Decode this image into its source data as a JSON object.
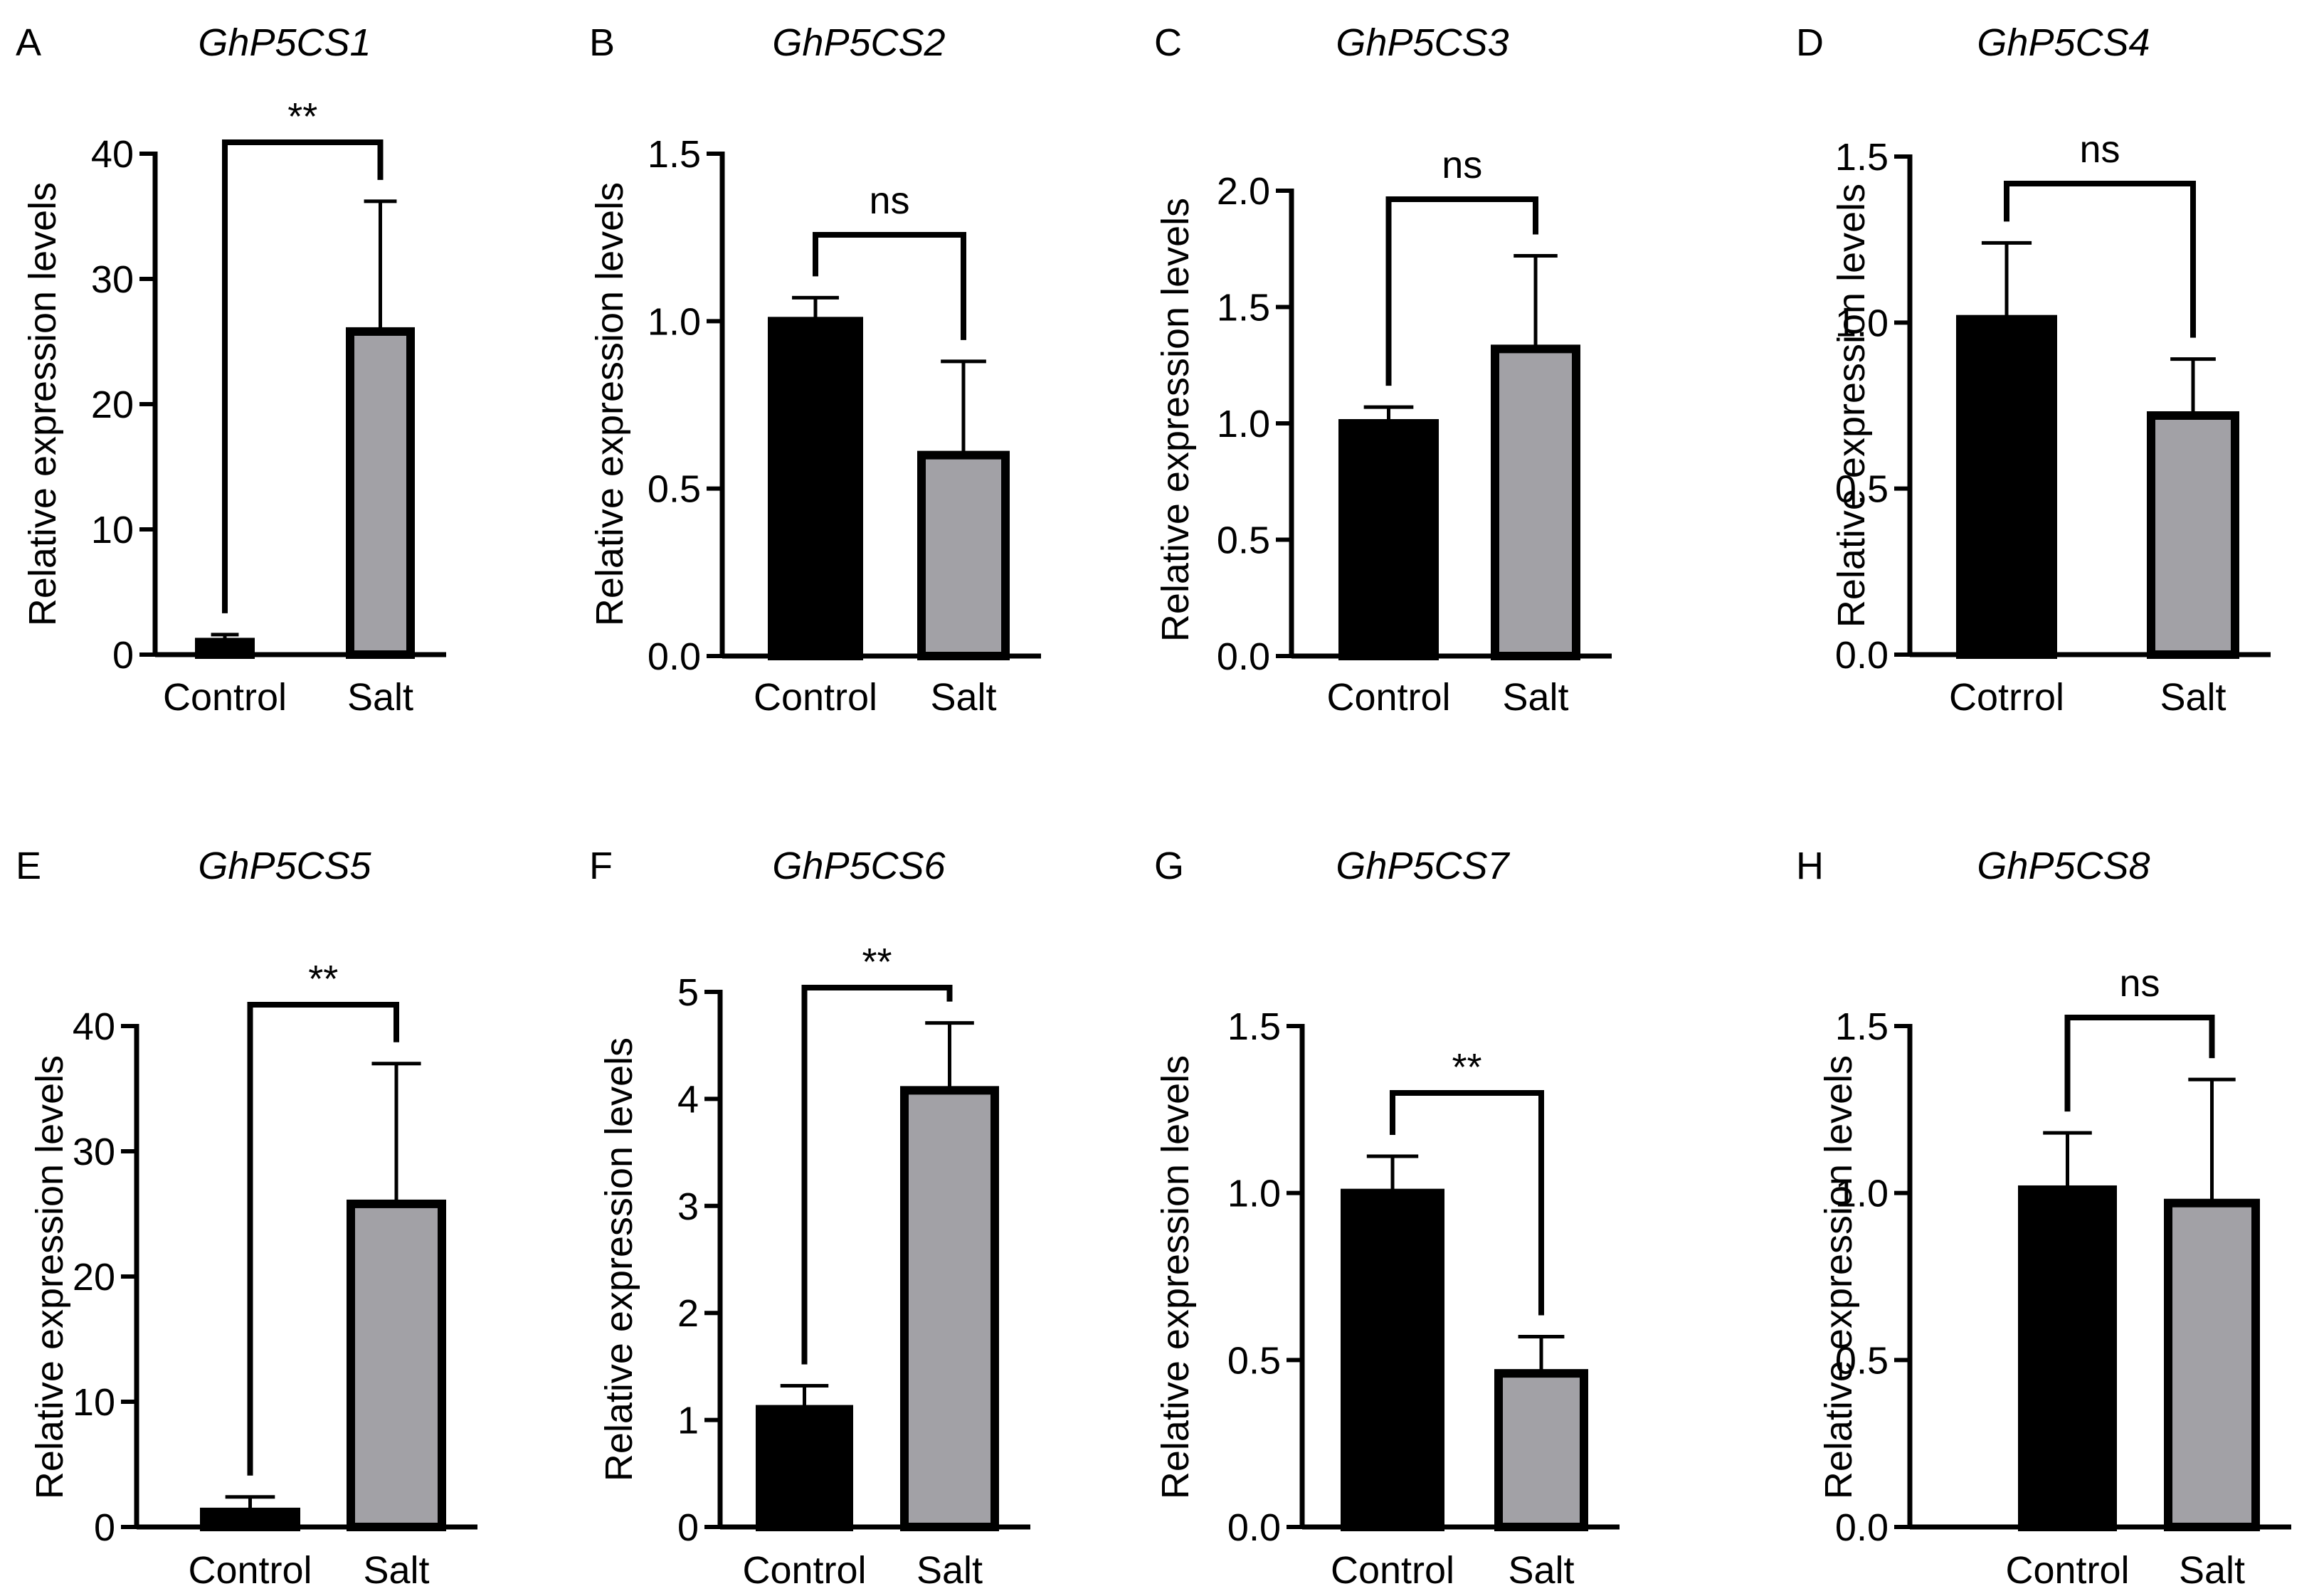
{
  "chart_data": [
    {
      "panel": "A",
      "type": "bar",
      "title": "GhP5CS1",
      "ylabel": "Relative expression levels",
      "xlabel": "",
      "ylim": [
        0,
        40
      ],
      "yticks": [
        0,
        10,
        20,
        30,
        40
      ],
      "ytick_labels": [
        "0",
        "10",
        "20",
        "30",
        "40"
      ],
      "categories": [
        "Control",
        "Salt"
      ],
      "values": [
        1.0,
        25.8
      ],
      "errors": [
        0.6,
        10.4
      ],
      "significance": "**"
    },
    {
      "panel": "B",
      "type": "bar",
      "title": "GhP5CS2",
      "ylabel": "Relative expression levels",
      "xlabel": "",
      "ylim": [
        0,
        1.5
      ],
      "yticks": [
        0,
        0.5,
        1.0,
        1.5
      ],
      "ytick_labels": [
        "0.0",
        "0.5",
        "1.0",
        "1.5"
      ],
      "categories": [
        "Control",
        "Salt"
      ],
      "values": [
        1.0,
        0.6
      ],
      "errors": [
        0.07,
        0.28
      ],
      "significance": "ns"
    },
    {
      "panel": "C",
      "type": "bar",
      "title": "GhP5CS3",
      "ylabel": "Relative expression levels",
      "xlabel": "",
      "ylim": [
        0,
        2.0
      ],
      "yticks": [
        0,
        0.5,
        1.0,
        1.5,
        2.0
      ],
      "ytick_labels": [
        "0.0",
        "0.5",
        "1.0",
        "1.5",
        "2.0"
      ],
      "categories": [
        "Control",
        "Salt"
      ],
      "values": [
        1.0,
        1.32
      ],
      "errors": [
        0.07,
        0.4
      ],
      "significance": "ns"
    },
    {
      "panel": "D",
      "type": "bar",
      "title": "GhP5CS4",
      "ylabel": "Relative expression levels",
      "xlabel": "",
      "ylim": [
        0,
        1.5
      ],
      "yticks": [
        0,
        0.5,
        1.0,
        1.5
      ],
      "ytick_labels": [
        "0.0",
        "0.5",
        "1.0",
        "1.5"
      ],
      "categories": [
        "Cotrrol",
        "Salt"
      ],
      "values": [
        1.01,
        0.72
      ],
      "errors": [
        0.23,
        0.17
      ],
      "significance": "ns"
    },
    {
      "panel": "E",
      "type": "bar",
      "title": "GhP5CS5",
      "ylabel": "Relative expression levels",
      "xlabel": "",
      "ylim": [
        0,
        40
      ],
      "yticks": [
        0,
        10,
        20,
        30,
        40
      ],
      "ytick_labels": [
        "0",
        "10",
        "20",
        "30",
        "40"
      ],
      "categories": [
        "Control",
        "Salt"
      ],
      "values": [
        1.2,
        25.8
      ],
      "errors": [
        1.2,
        11.2
      ],
      "significance": "**"
    },
    {
      "panel": "F",
      "type": "bar",
      "title": "GhP5CS6",
      "ylabel": "Relative expression levels",
      "xlabel": "",
      "ylim": [
        0,
        5
      ],
      "yticks": [
        0,
        1,
        2,
        3,
        4,
        5
      ],
      "ytick_labels": [
        "0",
        "1",
        "2",
        "3",
        "4",
        "5"
      ],
      "categories": [
        "Control",
        "Salt"
      ],
      "values": [
        1.1,
        4.08
      ],
      "errors": [
        0.22,
        0.63
      ],
      "significance": "**"
    },
    {
      "panel": "G",
      "type": "bar",
      "title": "GhP5CS7",
      "ylabel": "Relative expression levels",
      "xlabel": "",
      "ylim": [
        0,
        1.5
      ],
      "yticks": [
        0,
        0.5,
        1.0,
        1.5
      ],
      "ytick_labels": [
        "0.0",
        "0.5",
        "1.0",
        "1.5"
      ],
      "categories": [
        "Control",
        "Salt"
      ],
      "values": [
        1.0,
        0.46
      ],
      "errors": [
        0.11,
        0.11
      ],
      "significance": "**"
    },
    {
      "panel": "H",
      "type": "bar",
      "title": "GhP5CS8",
      "ylabel": "Relative expression levels",
      "xlabel": "",
      "ylim": [
        0,
        1.5
      ],
      "yticks": [
        0,
        0.5,
        1.0,
        1.5
      ],
      "ytick_labels": [
        "0.0",
        "0.5",
        "1.0",
        "1.5"
      ],
      "categories": [
        "Control",
        "Salt"
      ],
      "values": [
        1.01,
        0.97
      ],
      "errors": [
        0.17,
        0.37
      ],
      "significance": "ns"
    }
  ],
  "colors": {
    "control_bar": "#000000",
    "salt_bar": "#a2a1a6",
    "axis": "#000000"
  }
}
